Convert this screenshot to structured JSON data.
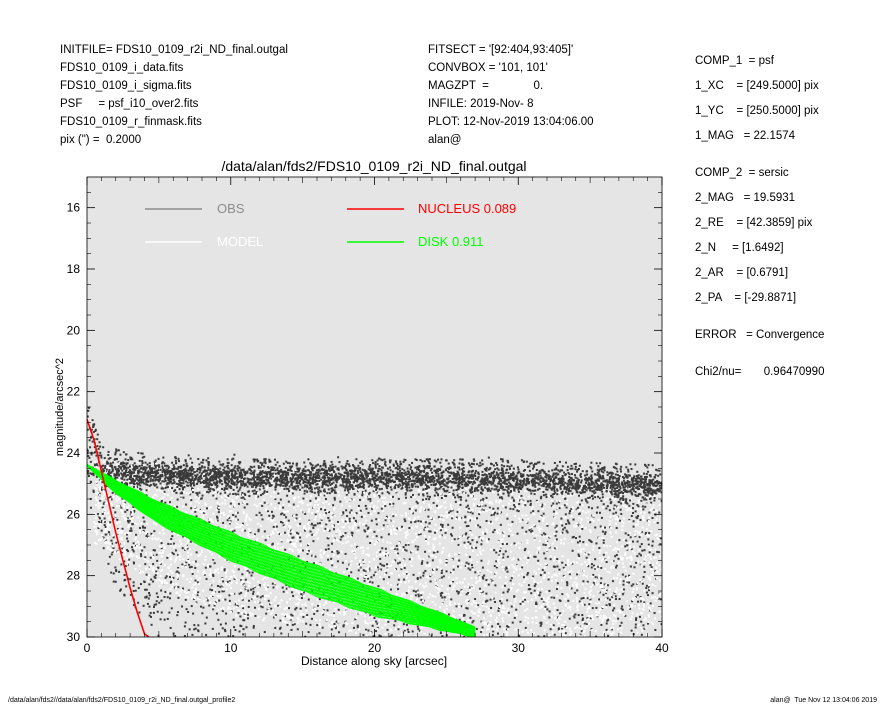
{
  "header_left": [
    "INITFILE= FDS10_0109_r2i_ND_final.outgal",
    "FDS10_0109_i_data.fits",
    "FDS10_0109_i_sigma.fits",
    "PSF     = psf_i10_over2.fits",
    "FDS10_0109_r_finmask.fits",
    "pix (\") =  0.2000"
  ],
  "header_mid": [
    "FITSECT = '[92:404,93:405]'",
    "CONVBOX = '101, 101'",
    "MAGZPT  =              0.",
    "INFILE: 2019-Nov- 8",
    "PLOT: 12-Nov-2019 13:04:06.00",
    "alan@"
  ],
  "header_right_comp1": [
    "COMP_1  = psf",
    "1_XC    = [249.5000] pix",
    "1_YC    = [250.5000] pix",
    "1_MAG   = 22.1574"
  ],
  "header_right_comp2": [
    "COMP_2  = sersic",
    "2_MAG   = 19.5931",
    "2_RE    = [42.3859] pix",
    "2_N     = [1.6492]",
    "2_AR    = [0.6791]",
    "2_PA    = [-29.8871]"
  ],
  "header_right_error": "ERROR   = Convergence",
  "header_right_chi": "Chi2/nu=       0.96470990",
  "footer_left": "/data/alan/fds2//data/alan/fds2/FDS10_0109_r2i_ND_final.outgal_profile2",
  "footer_right": "alan@  Tue Nov 12 13:04:06 2019",
  "colors": {
    "obs": "#3a3a3a",
    "model": "#ffffff",
    "nucleus": "#ff0000",
    "disk": "#00ff00",
    "plot_bg": "#e5e5e5",
    "legend_obs": "#8c8c8c"
  },
  "chart_data": {
    "type": "scatter",
    "title": "/data/alan/fds2/FDS10_0109_r2i_ND_final.outgal",
    "xlabel": "Distance along sky [arcsec]",
    "ylabel": "magnitude/arcsec^2",
    "xlim": [
      0,
      40
    ],
    "ylim": [
      30,
      15
    ],
    "y_inverted": true,
    "x_ticks": [
      0,
      10,
      20,
      30,
      40
    ],
    "y_ticks": [
      16,
      18,
      20,
      22,
      24,
      26,
      28,
      30
    ],
    "grid": false,
    "legend": [
      {
        "label": "OBS",
        "series": "obs"
      },
      {
        "label": "MODEL",
        "series": "model"
      },
      {
        "label": "NUCLEUS",
        "value": "0.089",
        "series": "nucleus"
      },
      {
        "label": "DISK",
        "value": "0.911",
        "series": "disk"
      }
    ],
    "legend_placement": "top",
    "series": [
      {
        "id": "obs",
        "kind": "scatter",
        "description_points": {
          "upper_envelope": [
            [
              0.2,
              22.5
            ],
            [
              1,
              23.8
            ],
            [
              5,
              24.1
            ],
            [
              10,
              24.2
            ],
            [
              20,
              24.2
            ],
            [
              30,
              24.2
            ],
            [
              40,
              24.4
            ]
          ],
          "dense_band": [
            [
              2,
              24.7
            ],
            [
              10,
              24.8
            ],
            [
              20,
              24.8
            ],
            [
              30,
              24.9
            ],
            [
              40,
              25.1
            ]
          ],
          "lower_envelope": [
            [
              0.5,
              26
            ],
            [
              2,
              28.5
            ],
            [
              5,
              30
            ],
            [
              40,
              30
            ]
          ]
        }
      },
      {
        "id": "model",
        "kind": "scatter",
        "description_points": {
          "upper_envelope": [
            [
              1,
              24.2
            ],
            [
              10,
              24.5
            ],
            [
              20,
              24.6
            ],
            [
              30,
              24.8
            ],
            [
              40,
              25.0
            ]
          ],
          "lower_envelope": [
            [
              1,
              27
            ],
            [
              5,
              28.5
            ],
            [
              10,
              29.3
            ],
            [
              20,
              30
            ],
            [
              40,
              30
            ]
          ]
        }
      },
      {
        "id": "nucleus",
        "kind": "line",
        "x": [
          0.0,
          0.5,
          1.0,
          1.5,
          2.0,
          2.5,
          3.0,
          3.5,
          4.0,
          4.3
        ],
        "y": [
          22.9,
          23.6,
          24.6,
          25.6,
          26.6,
          27.5,
          28.4,
          29.2,
          29.9,
          30.0
        ]
      },
      {
        "id": "disk",
        "kind": "band",
        "x": [
          0,
          2,
          5,
          10,
          15,
          20,
          25,
          27
        ],
        "y_upper": [
          24.4,
          24.9,
          25.6,
          26.6,
          27.5,
          28.4,
          29.3,
          29.7
        ],
        "y_lower": [
          24.4,
          25.3,
          26.3,
          27.5,
          28.5,
          29.3,
          29.8,
          30.0
        ]
      }
    ]
  }
}
